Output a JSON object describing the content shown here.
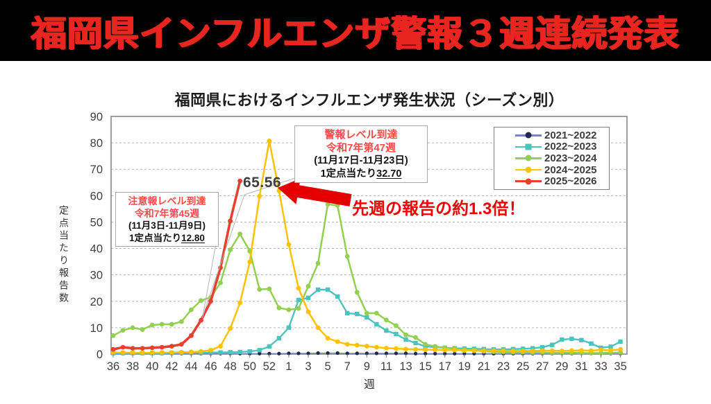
{
  "banner": {
    "title": "福岡県インフルエンザ警報３週連続発表"
  },
  "chart": {
    "title": "福岡県におけるインフルエンザ発生状況（シーズン別）"
  },
  "colors": {
    "banner_bg": "#000000",
    "banner_text": "#e8251f",
    "alert_red": "#fb4a4a",
    "note_red": "#f00000",
    "arrow_red": "#e40000"
  },
  "annotations": {
    "peak_value_label": "65.56",
    "note": "先週の報告の約1.3倍！",
    "warning_box": {
      "title": "警報レベル到達",
      "week": "令和7年第47週",
      "date_range": "(11月17日-11月23日)",
      "value_prefix": "1定点当たり",
      "value": "32.70"
    },
    "caution_box": {
      "title": "注意報レベル到達",
      "week": "令和7年第45週",
      "date_range": "(11月3日-11月9日)",
      "value_prefix": "1定点当たり",
      "value": "12.80"
    }
  },
  "chart_data": {
    "type": "line",
    "title": "福岡県におけるインフルエンザ発生状況（シーズン別）",
    "xlabel": "週",
    "ylabel": "定点当たり報告数",
    "ylim": [
      0,
      90
    ],
    "yticks": [
      0,
      10,
      20,
      30,
      40,
      50,
      60,
      70,
      80,
      90
    ],
    "grid": true,
    "legend_position": "top-right",
    "x_weeks": [
      36,
      37,
      38,
      39,
      40,
      41,
      42,
      43,
      44,
      45,
      46,
      47,
      48,
      49,
      50,
      51,
      52,
      53,
      1,
      2,
      3,
      4,
      5,
      6,
      7,
      8,
      9,
      10,
      11,
      12,
      13,
      14,
      15,
      16,
      17,
      18,
      19,
      20,
      21,
      22,
      23,
      24,
      25,
      26,
      27,
      28,
      29,
      30,
      31,
      32,
      33,
      34,
      35
    ],
    "xtick_every": 2,
    "series": [
      {
        "name": "2021~2022",
        "color": "#7585bb",
        "marker_color": "#1d2b4f",
        "marker": "circle-small",
        "line_width": 1.3,
        "values": [
          0.2,
          0.2,
          0.2,
          0.2,
          0.2,
          0.2,
          0.2,
          0.2,
          0.2,
          0.2,
          0.2,
          0.2,
          0.2,
          0.2,
          0.2,
          0.2,
          0.2,
          0.2,
          0.3,
          0.3,
          0.3,
          0.4,
          0.4,
          0.4,
          0.3,
          0.3,
          0.3,
          0.3,
          0.3,
          0.3,
          0.3,
          0.2,
          0.2,
          0.2,
          0.2,
          0.2,
          0.2,
          0.2,
          0.2,
          0.2,
          0.2,
          0.2,
          0.2,
          0.2,
          0.2,
          0.2,
          0.2,
          0.2,
          0.2,
          0.2,
          0.2,
          0.2,
          0.2
        ]
      },
      {
        "name": "2022~2023",
        "color": "#4cc3bd",
        "marker": "square",
        "line_width": 2.4,
        "values": [
          0.4,
          0.4,
          0.4,
          0.4,
          0.4,
          0.4,
          0.5,
          0.5,
          0.5,
          0.5,
          0.6,
          0.6,
          0.7,
          0.8,
          1.0,
          1.5,
          2.9,
          6.0,
          10.0,
          20.5,
          21.3,
          24.4,
          24.4,
          21.8,
          15.5,
          15.2,
          13.9,
          11.3,
          8.9,
          7.6,
          5.5,
          4.2,
          2.9,
          2.6,
          2.4,
          2.2,
          2.1,
          2.0,
          1.9,
          1.8,
          1.8,
          1.9,
          2.0,
          2.2,
          2.6,
          3.5,
          5.5,
          5.8,
          5.3,
          4.0,
          2.4,
          2.8,
          4.7
        ]
      },
      {
        "name": "2023~2024",
        "color": "#92d050",
        "marker": "circle",
        "line_width": 2.5,
        "values": [
          7.0,
          9.0,
          10.0,
          9.3,
          11.0,
          11.3,
          11.3,
          12.3,
          16.8,
          20.3,
          21.5,
          27.0,
          39.5,
          45.5,
          39.0,
          24.5,
          24.7,
          17.5,
          16.8,
          17.3,
          25.7,
          34.4,
          56.7,
          56.3,
          37.0,
          23.4,
          15.5,
          15.5,
          12.9,
          10.8,
          7.3,
          6.3,
          3.7,
          2.9,
          2.4,
          2.0,
          1.6,
          1.3,
          1.1,
          0.9,
          0.8,
          0.7,
          0.7,
          0.6,
          0.6,
          0.5,
          0.5,
          0.5,
          0.4,
          0.4,
          0.4,
          0.5,
          0.6
        ]
      },
      {
        "name": "2024~2025",
        "color": "#ffc104",
        "marker": "circle",
        "line_width": 2.5,
        "values": [
          0.6,
          0.6,
          0.5,
          0.5,
          0.5,
          0.6,
          0.6,
          0.7,
          0.8,
          1.0,
          1.5,
          3.0,
          9.7,
          19.4,
          34.9,
          59.8,
          80.7,
          61.9,
          41.5,
          25.0,
          16.0,
          10.0,
          6.0,
          4.7,
          3.7,
          3.4,
          3.0,
          2.6,
          2.3,
          2.1,
          1.9,
          1.8,
          1.7,
          1.6,
          1.5,
          1.5,
          1.4,
          1.4,
          1.3,
          1.3,
          1.3,
          1.2,
          1.2,
          1.2,
          1.3,
          1.3,
          1.2,
          1.3,
          1.4,
          1.3,
          1.6,
          1.4,
          1.8
        ]
      },
      {
        "name": "2025~2026",
        "color": "#e8402f",
        "marker": "circle",
        "line_width": 3.6,
        "values": [
          1.8,
          2.6,
          2.2,
          2.2,
          2.4,
          2.6,
          3.0,
          3.7,
          7.0,
          12.8,
          20.0,
          32.7,
          50.4,
          65.56
        ]
      }
    ]
  }
}
